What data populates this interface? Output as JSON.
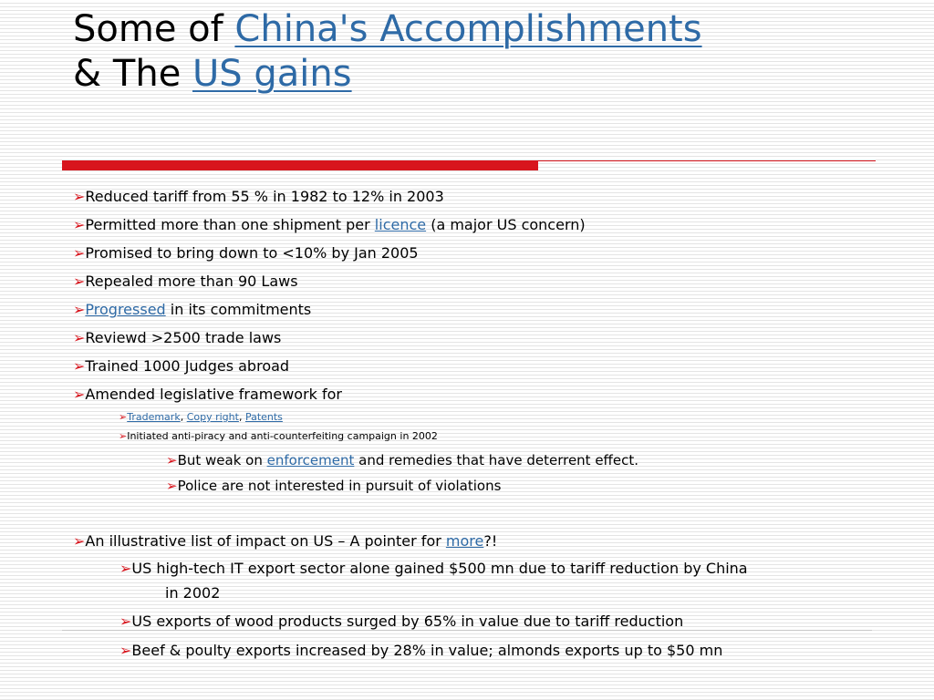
{
  "title": {
    "line1_prefix": "Some of ",
    "line1_link": "China's Accomplishments",
    "line2_prefix": "& The ",
    "line2_link": "US gains"
  },
  "bullet_glyph": "➢",
  "bullets": {
    "b1": "Reduced tariff from 55 % in 1982 to 12% in 2003",
    "b2_prefix": "Permitted  more than one shipment per ",
    "b2_link": "licence",
    "b2_suffix": " (a major US concern)",
    "b3": "Promised to bring down to <10% by Jan 2005",
    "b4": "Repealed  more than 90 Laws",
    "b5_link": "Progressed",
    "b5_suffix": " in its commitments",
    "b6": "Reviewd >2500 trade laws",
    "b7": "Trained 1000 Judges abroad",
    "b8": "Amended legislative framework for",
    "sub1_link1": "Trademark",
    "sub1_sep1": ", ",
    "sub1_link2": "Copy right",
    "sub1_sep2": ",  ",
    "sub1_link3": "Patents",
    "sub2": "Initiated anti-piracy and anti-counterfeiting campaign in 2002",
    "subsub1_prefix": "But weak on ",
    "subsub1_link": "enforcement",
    "subsub1_suffix": "  and remedies that have deterrent effect.",
    "subsub2": "Police are not interested in pursuit of violations",
    "b9_prefix": "An illustrative list of impact on US – A pointer for ",
    "b9_link": "more",
    "b9_suffix": "?!",
    "us1_line1": "US high-tech IT export sector alone gained  $500 mn due to  tariff reduction by China",
    "us1_line2": "in 2002",
    "us2": "US exports of wood products surged by 65% in value due to tariff reduction",
    "us3": "Beef &  poulty exports increased by 28% in value; almonds exports up to  $50 mn"
  },
  "colors": {
    "accent_red": "#d8151d",
    "link_blue": "#2e6aa6"
  }
}
